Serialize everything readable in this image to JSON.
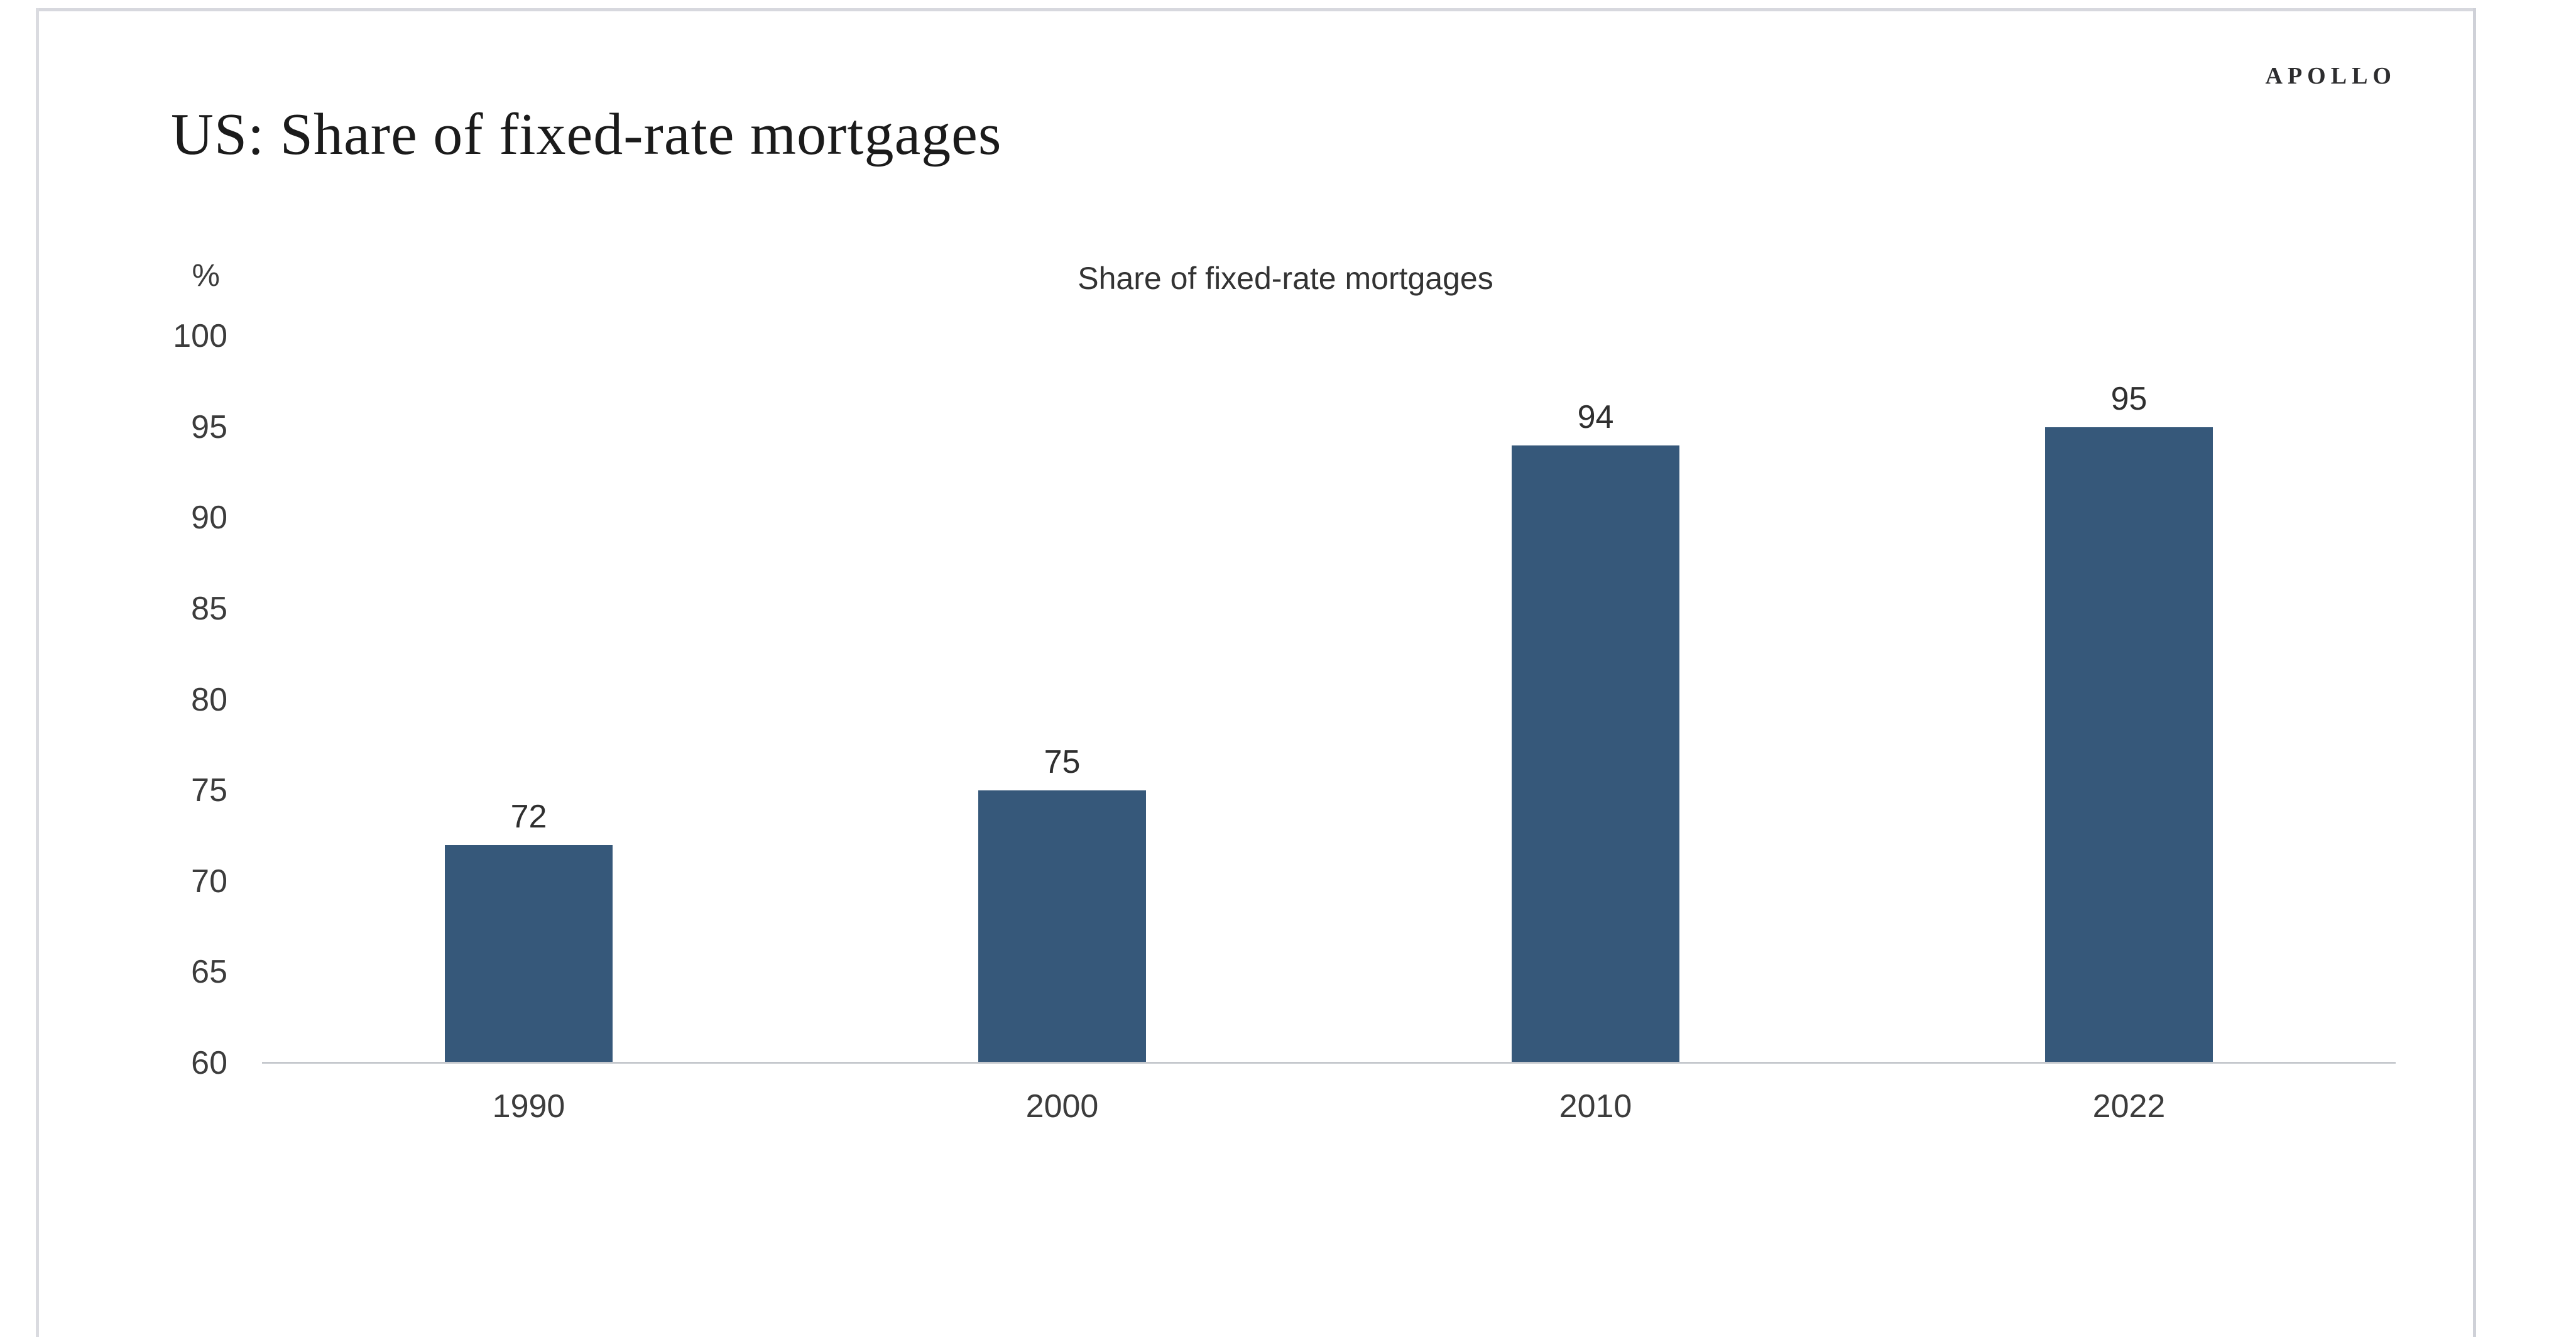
{
  "header": {
    "title": "US: Share of fixed-rate mortgages",
    "brand": "APOLLO"
  },
  "chart_data": {
    "type": "bar",
    "title": "Share of fixed-rate mortgages",
    "categories": [
      "1990",
      "2000",
      "2010",
      "2022"
    ],
    "values": [
      72,
      75,
      94,
      95
    ],
    "xlabel": "",
    "ylabel": "%",
    "ylim": [
      60,
      100
    ],
    "y_ticks": [
      100,
      95,
      90,
      85,
      80,
      75,
      70,
      65,
      60
    ],
    "grid": false,
    "legend": "none",
    "bar_color": "#36587a",
    "axis_line_color": "#c5c8cd",
    "text_color": "#3c3c3c"
  }
}
